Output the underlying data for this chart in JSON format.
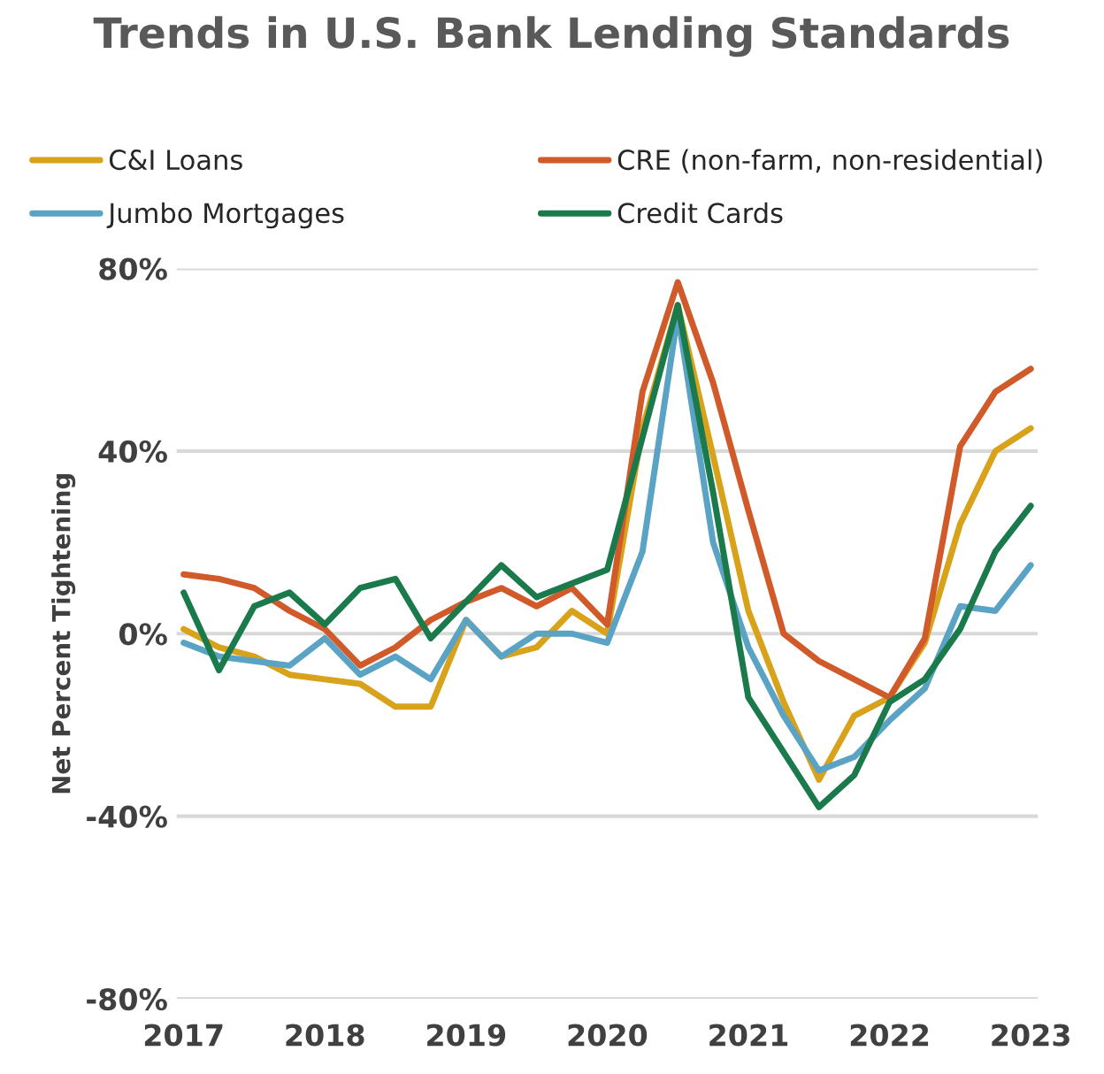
{
  "chart_data": {
    "type": "line",
    "title": "Trends in U.S. Bank Lending Standards",
    "ylabel": "Net Percent Tightening",
    "x": [
      2017,
      2017.25,
      2017.5,
      2017.75,
      2018,
      2018.25,
      2018.5,
      2018.75,
      2019,
      2019.25,
      2019.5,
      2019.75,
      2020,
      2020.25,
      2020.5,
      2020.75,
      2021,
      2021.25,
      2021.5,
      2021.75,
      2022,
      2022.25,
      2022.5,
      2022.75,
      2023
    ],
    "series": [
      {
        "name": "C&I Loans",
        "color": "#d9a21b",
        "values": [
          1,
          -3,
          -5,
          -9,
          -10,
          -11,
          -16,
          -16,
          3,
          -5,
          -3,
          5,
          0,
          45,
          72,
          39,
          5,
          -15,
          -32,
          -18,
          -14,
          -2,
          24,
          40,
          45
        ]
      },
      {
        "name": "CRE (non-farm, non-residential)",
        "color": "#d05a2a",
        "values": [
          13,
          12,
          10,
          5,
          1,
          -7,
          -3,
          3,
          7,
          10,
          6,
          10,
          2,
          53,
          77,
          55,
          27,
          0,
          -6,
          -10,
          -14,
          -1,
          41,
          53,
          58
        ]
      },
      {
        "name": "Jumbo Mortgages",
        "color": "#5aa3c4",
        "values": [
          -2,
          -5,
          -6,
          -7,
          -1,
          -9,
          -5,
          -10,
          3,
          -5,
          0,
          0,
          -2,
          18,
          70,
          20,
          -3,
          -18,
          -30,
          -27,
          -19,
          -12,
          6,
          5,
          15
        ]
      },
      {
        "name": "Credit Cards",
        "color": "#1a7a4c",
        "values": [
          9,
          -8,
          6,
          9,
          2,
          10,
          12,
          -1,
          7,
          15,
          8,
          11,
          14,
          43,
          72,
          31,
          -14,
          -26,
          -38,
          -31,
          -15,
          -10,
          1,
          18,
          28
        ]
      }
    ],
    "xlim": [
      2016.95,
      2023.05
    ],
    "xticks": [
      2017,
      2018,
      2019,
      2020,
      2021,
      2022,
      2023
    ],
    "ylim": [
      -80,
      80
    ],
    "yticks": [
      {
        "value": -80,
        "label": "-80%"
      },
      {
        "value": -40,
        "label": "-40%"
      },
      {
        "value": 0,
        "label": "0%"
      },
      {
        "value": 40,
        "label": "40%"
      },
      {
        "value": 80,
        "label": "80%"
      }
    ],
    "grid": "y",
    "legend": "top",
    "marker": "none",
    "line_style": "solid"
  }
}
